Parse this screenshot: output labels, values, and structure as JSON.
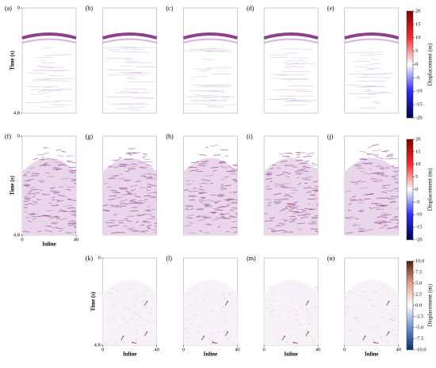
{
  "figure": {
    "rows": [
      {
        "panels": [
          {
            "label": "(a)",
            "y_label": "Time (s)",
            "ylim": [
              0,
              4.8
            ],
            "yticks": [
              0,
              4.8
            ]
          },
          {
            "label": "(b)"
          },
          {
            "label": "(c)"
          },
          {
            "label": "(d)"
          },
          {
            "label": "(e)"
          }
        ],
        "colorbar": {
          "label": "Displacement (m)",
          "lim": [
            -20,
            20
          ],
          "ticks": [
            -20,
            -15,
            -10,
            -5,
            0,
            5,
            10,
            15,
            20
          ]
        }
      },
      {
        "panels": [
          {
            "label": "(f)",
            "y_label": "Time (s)",
            "ylim": [
              0,
              4.8
            ],
            "yticks": [
              0,
              4.8
            ],
            "x_label": "Inline",
            "xlim": [
              0,
              40
            ],
            "xticks": [
              0,
              40
            ]
          },
          {
            "label": "(g)"
          },
          {
            "label": "(h)"
          },
          {
            "label": "(i)"
          },
          {
            "label": "(j)"
          }
        ],
        "colorbar": {
          "label": "Displacement (m)",
          "lim": [
            -20,
            20
          ],
          "ticks": [
            -20,
            -15,
            -10,
            -5,
            0,
            5,
            10,
            15,
            20
          ]
        }
      },
      {
        "panels": [
          {
            "label": "(k)",
            "y_label": "Time (s)",
            "ylim": [
              0,
              4.8
            ],
            "yticks": [
              0,
              4.8
            ],
            "x_label": "Inline",
            "xlim": [
              0,
              40
            ],
            "xticks": [
              0,
              40
            ]
          },
          {
            "label": "(l)",
            "x_label": "Inline",
            "xlim": [
              0,
              40
            ],
            "xticks": [
              0,
              40
            ]
          },
          {
            "label": "(m)",
            "x_label": "Inline",
            "xlim": [
              0,
              40
            ],
            "xticks": [
              0,
              40
            ]
          },
          {
            "label": "(n)",
            "x_label": "Inline",
            "xlim": [
              0,
              40
            ],
            "xticks": [
              0,
              40
            ]
          }
        ],
        "colorbar": {
          "label": "Displacement (m)",
          "lim": [
            -10,
            10
          ],
          "ticks": [
            {
              "value": -10,
              "label": "-10.0"
            },
            -7.5,
            {
              "value": -5,
              "label": "-5.0"
            },
            -2.5,
            {
              "value": 0,
              "label": "0.0"
            },
            2.5,
            {
              "value": 5,
              "label": "5.0"
            },
            7.5,
            {
              "value": 10,
              "label": "10.0"
            }
          ]
        }
      }
    ]
  }
}
